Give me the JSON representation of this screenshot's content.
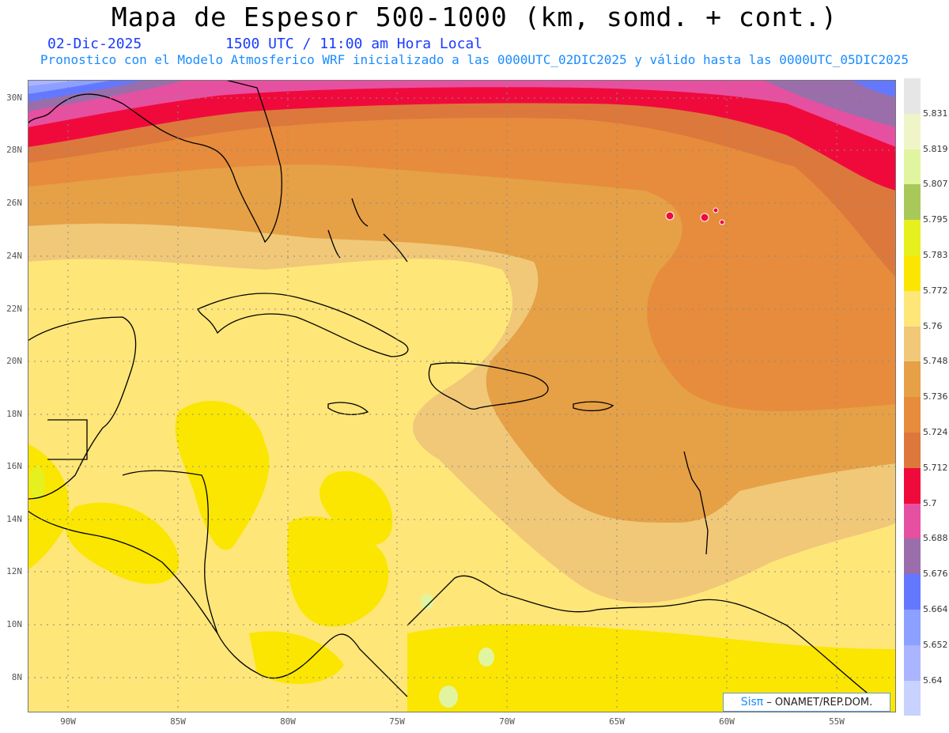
{
  "header": {
    "title": "Mapa de Espesor 500-1000 (km, somd. + cont.)",
    "date": "02-Dic-2025",
    "time": "1500 UTC / 11:00 am Hora Local",
    "subtitle": "Pronostico con el Modelo Atmosferico WRF inicializado a las 0000UTC_02DIC2025 y válido hasta las  0000UTC_05DIC2025"
  },
  "map": {
    "lat_labels": [
      "30N",
      "28N",
      "26N",
      "24N",
      "22N",
      "20N",
      "18N",
      "16N",
      "14N",
      "12N",
      "10N",
      "8N"
    ],
    "lon_labels": [
      "90W",
      "85W",
      "80W",
      "75W",
      "70W",
      "65W",
      "60W",
      "55W"
    ]
  },
  "colorbar": {
    "labels": [
      "5.831",
      "5.819",
      "5.807",
      "5.795",
      "5.783",
      "5.772",
      "5.76",
      "5.748",
      "5.736",
      "5.724",
      "5.712",
      "5.7",
      "5.688",
      "5.676",
      "5.664",
      "5.652",
      "5.64"
    ],
    "colors": [
      "#e6e6e6",
      "#f0f5c8",
      "#e1f5a0",
      "#a8c85a",
      "#e6f01e",
      "#fae600",
      "#ffe678",
      "#f0c878",
      "#e6a046",
      "#e68c3c",
      "#dc783c",
      "#f00a3c",
      "#e650a0",
      "#9a6eaa",
      "#6478ff",
      "#8ca0ff",
      "#aab4ff",
      "#c8d2ff"
    ]
  },
  "credit": {
    "logo": "Sisπ",
    "org": "– ONAMET/REP.DOM."
  }
}
